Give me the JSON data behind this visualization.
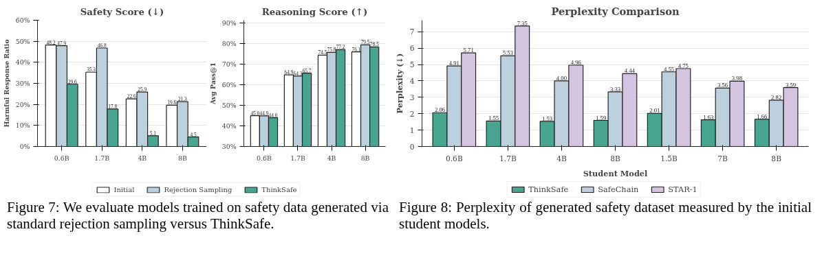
{
  "chart_data": [
    {
      "type": "bar",
      "title": "Safety Score (↓)",
      "ylabel": "Harmful Response Ratio",
      "categories": [
        "0.6B",
        "1.7B",
        "4B",
        "8B"
      ],
      "series": [
        {
          "name": "Initial",
          "color": "#ffffff",
          "values": [
            48.2,
            35.3,
            22.6,
            19.6
          ],
          "value_labels": [
            "48.2",
            "35.3",
            "22.6",
            "19.6"
          ]
        },
        {
          "name": "Rejection Sampling",
          "color": "#bccfdc",
          "values": [
            47.9,
            46.8,
            25.9,
            21.3
          ],
          "value_labels": [
            "47.9",
            "46.8",
            "25.9",
            "21.3"
          ]
        },
        {
          "name": "ThinkSafe",
          "color": "#4aa590",
          "values": [
            29.6,
            17.8,
            5.1,
            4.5
          ],
          "value_labels": [
            "29.6",
            "17.8",
            "5.1",
            "4.5"
          ]
        }
      ],
      "ylim": [
        0,
        60
      ],
      "yticks": [
        {
          "value": 0,
          "label": "0%"
        },
        {
          "value": 10,
          "label": "10%"
        },
        {
          "value": 20,
          "label": "20%"
        },
        {
          "value": 30,
          "label": "30%"
        },
        {
          "value": 40,
          "label": "40%"
        },
        {
          "value": 50,
          "label": "50%"
        },
        {
          "value": 60,
          "label": "60%"
        }
      ],
      "grid": "y",
      "legend": "bottom",
      "annotations": [
        "Figure 7: We evaluate models trained on safety data generated via standard rejection sampling versus ThinkSafe."
      ]
    },
    {
      "type": "bar",
      "title": "Reasoning Score (↑)",
      "ylabel": "Avg Pass@1",
      "categories": [
        "0.6B",
        "1.7B",
        "4B",
        "8B"
      ],
      "series": [
        {
          "color": "#ffffff",
          "values": [
            45.0,
            64.9,
            74.5,
            76.1
          ],
          "value_labels": [
            "45.0",
            "64.9",
            "74.5",
            "76.1"
          ]
        },
        {
          "color": "#bccfdc",
          "values": [
            44.9,
            64.3,
            75.8,
            79.5
          ],
          "value_labels": [
            "44.9",
            "64.3",
            "75.8",
            "79.5"
          ]
        },
        {
          "color": "#4aa590",
          "values": [
            44.0,
            65.7,
            77.2,
            78.5
          ],
          "value_labels": [
            "44.0",
            "65.7",
            "77.2",
            "78.5"
          ]
        }
      ],
      "ylim": [
        30,
        91.5
      ],
      "yticks": [
        {
          "value": 30,
          "label": "30%"
        },
        {
          "value": 40,
          "label": "40%"
        },
        {
          "value": 50,
          "label": "50%"
        },
        {
          "value": 60,
          "label": "60%"
        },
        {
          "value": 70,
          "label": "70%"
        },
        {
          "value": 80,
          "label": "80%"
        },
        {
          "value": 90,
          "label": "90%"
        }
      ],
      "grid": "y"
    },
    {
      "type": "bar",
      "title": "Perplexity Comparison",
      "xlabel": "Student Model",
      "ylabel": "Perplexity (↓)",
      "categories": [
        "0.6B",
        "1.7B",
        "4B",
        "8B",
        "1.5B",
        "7B",
        "8B"
      ],
      "series": [
        {
          "name": "ThinkSafe",
          "color": "#4aa590",
          "values": [
            2.06,
            1.55,
            1.53,
            1.59,
            2.01,
            1.63,
            1.66
          ],
          "value_labels": [
            "2.06",
            "1.55",
            "1.53",
            "1.59",
            "2.01",
            "1.63",
            "1.66"
          ]
        },
        {
          "name": "SafeChain",
          "color": "#bccfdc",
          "values": [
            4.91,
            5.53,
            4.0,
            3.33,
            4.55,
            3.56,
            2.82
          ],
          "value_labels": [
            "4.91",
            "5.53",
            "4.00",
            "3.33",
            "4.55",
            "3.56",
            "2.82"
          ]
        },
        {
          "name": "STAR-1",
          "color": "#d5c4e0",
          "values": [
            5.71,
            7.35,
            4.96,
            4.44,
            4.75,
            3.98,
            3.59
          ],
          "value_labels": [
            "5.71",
            "7.35",
            "4.96",
            "4.44",
            "4.75",
            "3.98",
            "3.59"
          ]
        }
      ],
      "ylim": [
        0,
        7.7
      ],
      "yticks": [
        0,
        1,
        2,
        3,
        4,
        5,
        6,
        7
      ],
      "grid": "y",
      "legend": "bottom",
      "annotations": [
        "Figure 8: Perplexity of generated safety dataset measured by the initial student models."
      ]
    }
  ]
}
